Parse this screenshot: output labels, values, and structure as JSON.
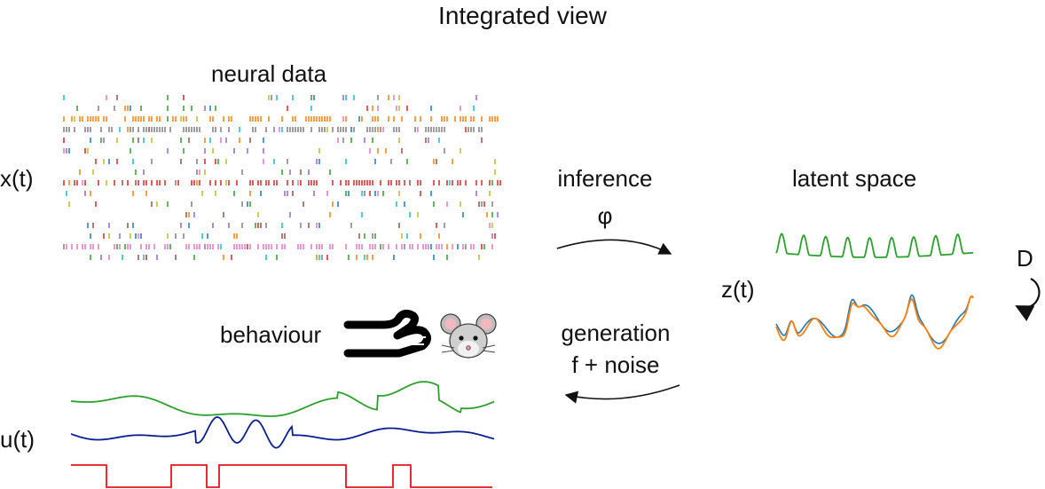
{
  "title": "Integrated view",
  "neural": {
    "heading": "neural data",
    "axis_label": "x(t)"
  },
  "inference": {
    "label": "inference",
    "symbol": "φ"
  },
  "latent": {
    "heading": "latent space",
    "axis_label": "z(t)",
    "dynamics_label": "D"
  },
  "generation": {
    "label": "generation",
    "formula": "f + noise"
  },
  "behaviour": {
    "label": "behaviour",
    "axis_label": "u(t)"
  },
  "colors": {
    "green": "#2ca02c",
    "navy": "#0a1f8f",
    "red": "#e8141c",
    "orange": "#ff7f0e",
    "blue": "#1f77b4",
    "gray": "#7f7f7f",
    "magenta": "#e377c2"
  }
}
